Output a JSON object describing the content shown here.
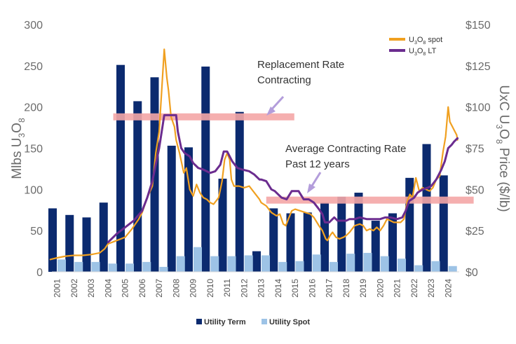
{
  "chart_data": {
    "type": "bar+line",
    "categories": [
      "2001",
      "2002",
      "2003",
      "2004",
      "2005",
      "2006",
      "2007",
      "2008",
      "2009",
      "2010",
      "2011",
      "2012",
      "2013",
      "2014",
      "2015",
      "2016",
      "2017",
      "2018",
      "2019",
      "2020",
      "2021",
      "2022",
      "2023",
      "2024"
    ],
    "series": [
      {
        "name": "Utility Term",
        "type": "bar",
        "axis": "left",
        "color": "#0b2a6f",
        "values": [
          77,
          69,
          66,
          84,
          251,
          207,
          236,
          153,
          151,
          249,
          113,
          194,
          25,
          77,
          71,
          72,
          84,
          91,
          96,
          62,
          71,
          114,
          155,
          117
        ]
      },
      {
        "name": "Utility Spot",
        "type": "bar",
        "axis": "left",
        "color": "#9dc3e6",
        "values": [
          15,
          12,
          12,
          10,
          10,
          12,
          6,
          19,
          30,
          19,
          19,
          20,
          20,
          12,
          13,
          21,
          12,
          22,
          23,
          19,
          16,
          8,
          13,
          7
        ]
      },
      {
        "name": "U3O8 spot",
        "type": "line",
        "axis": "right",
        "color": "#f0a020",
        "points": [
          [
            2000.6,
            7.5
          ],
          [
            2001.0,
            8.5
          ],
          [
            2001.5,
            9.5
          ],
          [
            2002.0,
            10
          ],
          [
            2002.5,
            10
          ],
          [
            2003.0,
            10.5
          ],
          [
            2003.5,
            11.5
          ],
          [
            2003.8,
            14
          ],
          [
            2004.0,
            17
          ],
          [
            2004.5,
            19
          ],
          [
            2005.0,
            21
          ],
          [
            2005.4,
            26
          ],
          [
            2005.8,
            32
          ],
          [
            2006.0,
            36
          ],
          [
            2006.3,
            45
          ],
          [
            2006.6,
            52
          ],
          [
            2006.8,
            72
          ],
          [
            2007.0,
            85
          ],
          [
            2007.15,
            110
          ],
          [
            2007.3,
            135
          ],
          [
            2007.45,
            118
          ],
          [
            2007.55,
            110
          ],
          [
            2007.7,
            94
          ],
          [
            2007.9,
            88
          ],
          [
            2008.0,
            80
          ],
          [
            2008.2,
            72
          ],
          [
            2008.45,
            60
          ],
          [
            2008.6,
            63
          ],
          [
            2008.8,
            50
          ],
          [
            2009.0,
            46
          ],
          [
            2009.2,
            53
          ],
          [
            2009.4,
            48
          ],
          [
            2009.6,
            45
          ],
          [
            2009.8,
            44
          ],
          [
            2010.0,
            42
          ],
          [
            2010.2,
            41
          ],
          [
            2010.5,
            45
          ],
          [
            2010.7,
            55
          ],
          [
            2010.85,
            68
          ],
          [
            2011.0,
            72
          ],
          [
            2011.15,
            68
          ],
          [
            2011.25,
            56
          ],
          [
            2011.4,
            52
          ],
          [
            2011.7,
            52
          ],
          [
            2012.0,
            51
          ],
          [
            2012.3,
            52
          ],
          [
            2012.6,
            48
          ],
          [
            2012.9,
            44
          ],
          [
            2013.0,
            42
          ],
          [
            2013.3,
            40
          ],
          [
            2013.6,
            36
          ],
          [
            2013.9,
            34
          ],
          [
            2014.1,
            35
          ],
          [
            2014.3,
            29
          ],
          [
            2014.45,
            28
          ],
          [
            2014.6,
            32
          ],
          [
            2014.8,
            37
          ],
          [
            2015.0,
            38
          ],
          [
            2015.3,
            37
          ],
          [
            2015.6,
            36
          ],
          [
            2015.9,
            35
          ],
          [
            2016.1,
            33
          ],
          [
            2016.4,
            28
          ],
          [
            2016.6,
            25
          ],
          [
            2016.8,
            20
          ],
          [
            2016.9,
            19
          ],
          [
            2017.05,
            22
          ],
          [
            2017.2,
            24
          ],
          [
            2017.4,
            21
          ],
          [
            2017.6,
            20
          ],
          [
            2017.85,
            21
          ],
          [
            2018.0,
            22
          ],
          [
            2018.2,
            24
          ],
          [
            2018.5,
            28
          ],
          [
            2018.8,
            29
          ],
          [
            2019.0,
            28
          ],
          [
            2019.2,
            25
          ],
          [
            2019.4,
            26
          ],
          [
            2019.6,
            25
          ],
          [
            2019.8,
            27
          ],
          [
            2020.0,
            25
          ],
          [
            2020.2,
            28
          ],
          [
            2020.4,
            32
          ],
          [
            2020.6,
            31
          ],
          [
            2020.8,
            30
          ],
          [
            2021.0,
            30
          ],
          [
            2021.2,
            30
          ],
          [
            2021.4,
            32
          ],
          [
            2021.6,
            43
          ],
          [
            2021.75,
            47
          ],
          [
            2021.9,
            45
          ],
          [
            2022.1,
            57
          ],
          [
            2022.3,
            49
          ],
          [
            2022.5,
            51
          ],
          [
            2022.7,
            50
          ],
          [
            2022.9,
            49
          ],
          [
            2023.1,
            51
          ],
          [
            2023.3,
            56
          ],
          [
            2023.5,
            58
          ],
          [
            2023.7,
            73
          ],
          [
            2023.85,
            82
          ],
          [
            2024.0,
            100
          ],
          [
            2024.1,
            91
          ],
          [
            2024.25,
            88
          ],
          [
            2024.35,
            86
          ],
          [
            2024.5,
            83
          ],
          [
            2024.55,
            80
          ]
        ]
      },
      {
        "name": "U3O8 LT",
        "type": "line",
        "axis": "right",
        "color": "#6b2c8f",
        "points": [
          [
            2004.0,
            18
          ],
          [
            2004.5,
            23
          ],
          [
            2005.0,
            27
          ],
          [
            2005.5,
            31
          ],
          [
            2006.0,
            37
          ],
          [
            2006.3,
            45
          ],
          [
            2006.6,
            55
          ],
          [
            2006.8,
            65
          ],
          [
            2007.0,
            75
          ],
          [
            2007.15,
            85
          ],
          [
            2007.3,
            95
          ],
          [
            2008.0,
            95
          ],
          [
            2008.1,
            85
          ],
          [
            2008.3,
            75
          ],
          [
            2008.5,
            72
          ],
          [
            2008.8,
            70
          ],
          [
            2009.0,
            66
          ],
          [
            2009.3,
            63
          ],
          [
            2009.6,
            62
          ],
          [
            2010.0,
            60
          ],
          [
            2010.3,
            61
          ],
          [
            2010.6,
            65
          ],
          [
            2010.8,
            73
          ],
          [
            2011.0,
            73
          ],
          [
            2011.3,
            67
          ],
          [
            2011.6,
            63
          ],
          [
            2011.9,
            62
          ],
          [
            2012.3,
            61
          ],
          [
            2012.6,
            59
          ],
          [
            2012.9,
            56
          ],
          [
            2013.0,
            56
          ],
          [
            2013.3,
            55
          ],
          [
            2013.6,
            50
          ],
          [
            2013.8,
            49
          ],
          [
            2014.0,
            47
          ],
          [
            2014.2,
            45
          ],
          [
            2014.5,
            44
          ],
          [
            2014.8,
            49
          ],
          [
            2015.2,
            49
          ],
          [
            2015.5,
            44
          ],
          [
            2015.8,
            44
          ],
          [
            2016.1,
            42
          ],
          [
            2016.4,
            38
          ],
          [
            2016.6,
            35
          ],
          [
            2016.75,
            30
          ],
          [
            2017.0,
            30
          ],
          [
            2017.3,
            33
          ],
          [
            2017.5,
            31
          ],
          [
            2017.8,
            31
          ],
          [
            2018.0,
            31
          ],
          [
            2018.2,
            32
          ],
          [
            2018.5,
            32
          ],
          [
            2018.8,
            33
          ],
          [
            2019.2,
            32
          ],
          [
            2019.6,
            32
          ],
          [
            2020.0,
            32
          ],
          [
            2020.3,
            33
          ],
          [
            2020.6,
            33
          ],
          [
            2021.0,
            32
          ],
          [
            2021.3,
            33
          ],
          [
            2021.5,
            37
          ],
          [
            2021.7,
            43
          ],
          [
            2022.0,
            45
          ],
          [
            2022.2,
            48
          ],
          [
            2022.5,
            50
          ],
          [
            2022.8,
            51
          ],
          [
            2023.0,
            52
          ],
          [
            2023.3,
            56
          ],
          [
            2023.6,
            62
          ],
          [
            2023.8,
            67
          ],
          [
            2024.0,
            75
          ],
          [
            2024.2,
            77
          ],
          [
            2024.35,
            79
          ],
          [
            2024.55,
            81
          ]
        ]
      }
    ],
    "y_left": {
      "label_parts": [
        "Mlbs U",
        "3",
        "O",
        "8"
      ],
      "lim": [
        0,
        300
      ],
      "ticks": [
        0,
        50,
        100,
        150,
        200,
        250,
        300
      ],
      "tick_labels": [
        "0",
        "50",
        "100",
        "150",
        "200",
        "250",
        "300"
      ]
    },
    "y_right": {
      "label_parts": [
        "UxC U",
        "3",
        "O",
        "8",
        " Price ($/lb)"
      ],
      "lim": [
        0,
        150
      ],
      "ticks": [
        0,
        25,
        50,
        75,
        100,
        125,
        150
      ],
      "tick_labels": [
        "$0",
        "$25",
        "$50",
        "$75",
        "$100",
        "$125",
        "$150"
      ]
    },
    "bands": [
      {
        "name": "replacement-rate-band",
        "y_right": 94,
        "from_year": 2004.3,
        "to_year": 2014.95,
        "color": "#f4a6a6"
      },
      {
        "name": "average-contracting-band",
        "y_right": 43.5,
        "from_year": 2013.3,
        "to_year": 2025.5,
        "color": "#f4a6a6"
      }
    ],
    "annotations": [
      {
        "name": "replacement-rate-annotation",
        "lines": [
          "Replacement Rate",
          "Contracting"
        ]
      },
      {
        "name": "average-contracting-annotation",
        "lines": [
          "Average Contracting Rate",
          "Past 12 years"
        ]
      }
    ],
    "legend_top": [
      {
        "parts": [
          "U",
          "3",
          "O",
          "8",
          " spot"
        ],
        "color": "#f0a020"
      },
      {
        "parts": [
          "U",
          "3",
          "O",
          "8",
          " LT"
        ],
        "color": "#6b2c8f"
      }
    ],
    "legend_bottom": [
      {
        "label": "Utility Term",
        "color": "#0b2a6f"
      },
      {
        "label": "Utility Spot",
        "color": "#9dc3e6"
      }
    ],
    "grid": false
  }
}
